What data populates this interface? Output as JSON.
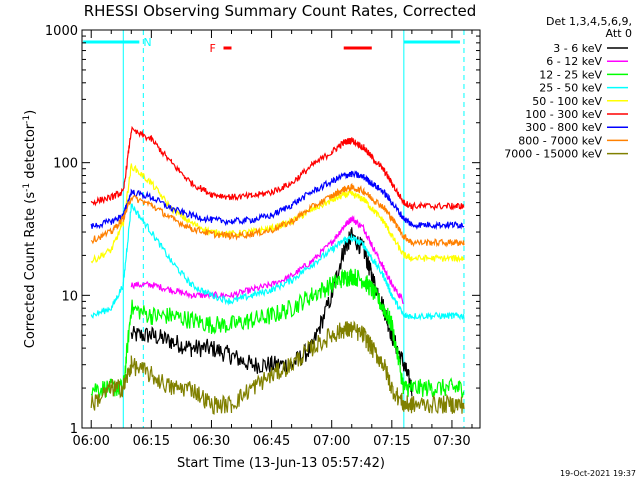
{
  "chart_data": {
    "type": "line",
    "title": "RHESSI Observing Summary Count Rates, Corrected",
    "xlabel": "Start Time (13-Jun-13 05:57:42)",
    "ylabel": "Corrected Count Rate (s⁻¹ detector⁻¹)",
    "ylabel_base": "Corrected Count Rate (s",
    "ylabel_mid": " detector",
    "ylabel_end": ")",
    "ylabel_exp": "-1",
    "y_scale": "log",
    "ylim": [
      1,
      1000
    ],
    "x_tick_labels": [
      "06:00",
      "06:15",
      "06:30",
      "06:45",
      "07:00",
      "07:15",
      "07:30"
    ],
    "y_tick_labels": [
      "1",
      "10",
      "100",
      "1000"
    ],
    "grid": false,
    "legend_header": [
      "Det 1,3,4,5,6,9,",
      "Att 0"
    ],
    "legend_position": "right",
    "footer_timestamp": "19-Oct-2021 19:37",
    "flags": [
      {
        "label": "N",
        "color": "#00ffff",
        "x_start": "05:58",
        "x_end": "06:12"
      },
      {
        "label": "",
        "color": "#00ffff",
        "x_start": "07:18",
        "x_end": "07:32"
      },
      {
        "label": "F",
        "color": "#ff0000",
        "x_start": "06:33",
        "x_end": "06:35"
      },
      {
        "label": "",
        "color": "#ff0000",
        "x_start": "07:03",
        "x_end": "07:10"
      }
    ],
    "vertical_markers": [
      {
        "time": "06:08",
        "color": "#00ffff",
        "style": "solid"
      },
      {
        "time": "06:13",
        "color": "#00ffff",
        "style": "dashed"
      },
      {
        "time": "07:18",
        "color": "#00ffff",
        "style": "solid"
      },
      {
        "time": "07:33",
        "color": "#00ffff",
        "style": "dashed"
      }
    ],
    "x_times": [
      "06:00",
      "06:05",
      "06:08",
      "06:10",
      "06:15",
      "06:20",
      "06:25",
      "06:30",
      "06:35",
      "06:40",
      "06:45",
      "06:50",
      "06:55",
      "07:00",
      "07:03",
      "07:05",
      "07:08",
      "07:10",
      "07:13",
      "07:15",
      "07:18",
      "07:20",
      "07:25",
      "07:30",
      "07:33"
    ],
    "series": [
      {
        "name": "3 - 6 keV",
        "color": "#000000",
        "values": [
          null,
          null,
          null,
          5,
          5,
          4.5,
          4,
          4,
          3.5,
          3,
          3,
          3,
          4,
          10,
          22,
          28,
          22,
          14,
          8,
          5,
          3,
          2,
          null,
          null,
          null
        ]
      },
      {
        "name": "6 - 12 keV",
        "color": "#ff00ff",
        "values": [
          null,
          null,
          null,
          12,
          12,
          11,
          10,
          10,
          10,
          11,
          12,
          14,
          18,
          25,
          33,
          38,
          32,
          24,
          16,
          12,
          9,
          null,
          null,
          null,
          null
        ]
      },
      {
        "name": "12 - 25 keV",
        "color": "#00ff00",
        "values": [
          2,
          2,
          2,
          8,
          7,
          7,
          6.5,
          6,
          6,
          6.5,
          7,
          8,
          10,
          12,
          13.5,
          14,
          13,
          11,
          8,
          6,
          2,
          2,
          2,
          2,
          2
        ]
      },
      {
        "name": "25 - 50 keV",
        "color": "#00ffff",
        "values": [
          7,
          8,
          12,
          48,
          30,
          18,
          12,
          10,
          9,
          10,
          11,
          13,
          17,
          22,
          26,
          27,
          24,
          19,
          14,
          10,
          7,
          7,
          7,
          7,
          7
        ]
      },
      {
        "name": "50 - 100 keV",
        "color": "#ffff00",
        "values": [
          18,
          22,
          35,
          95,
          70,
          45,
          35,
          30,
          29,
          30,
          32,
          36,
          44,
          52,
          57,
          58,
          53,
          45,
          36,
          28,
          20,
          19,
          19,
          19,
          19
        ]
      },
      {
        "name": "100 - 300 keV",
        "color": "#ff0000",
        "values": [
          50,
          55,
          60,
          175,
          150,
          100,
          70,
          58,
          55,
          56,
          60,
          70,
          95,
          120,
          142,
          148,
          130,
          110,
          88,
          70,
          50,
          47,
          47,
          47,
          47
        ]
      },
      {
        "name": "300 - 800 keV",
        "color": "#0000ff",
        "values": [
          33,
          36,
          40,
          60,
          55,
          45,
          40,
          37,
          36,
          37,
          40,
          48,
          60,
          72,
          80,
          82,
          78,
          70,
          60,
          50,
          38,
          34,
          34,
          34,
          34
        ]
      },
      {
        "name": "800 - 7000 keV",
        "color": "#ff8000",
        "values": [
          26,
          30,
          38,
          55,
          48,
          38,
          32,
          29,
          28,
          29,
          31,
          36,
          46,
          56,
          63,
          65,
          61,
          54,
          46,
          38,
          28,
          25,
          25,
          25,
          25
        ]
      },
      {
        "name": "7000 - 15000 keV",
        "color": "#808000",
        "values": [
          1.5,
          2,
          2,
          3,
          2.5,
          2,
          2,
          1.5,
          1.5,
          2,
          2.5,
          3,
          4,
          5,
          5.5,
          5.5,
          5,
          4,
          3,
          2,
          1.5,
          1.5,
          1.5,
          1.5,
          1.5
        ]
      }
    ]
  }
}
